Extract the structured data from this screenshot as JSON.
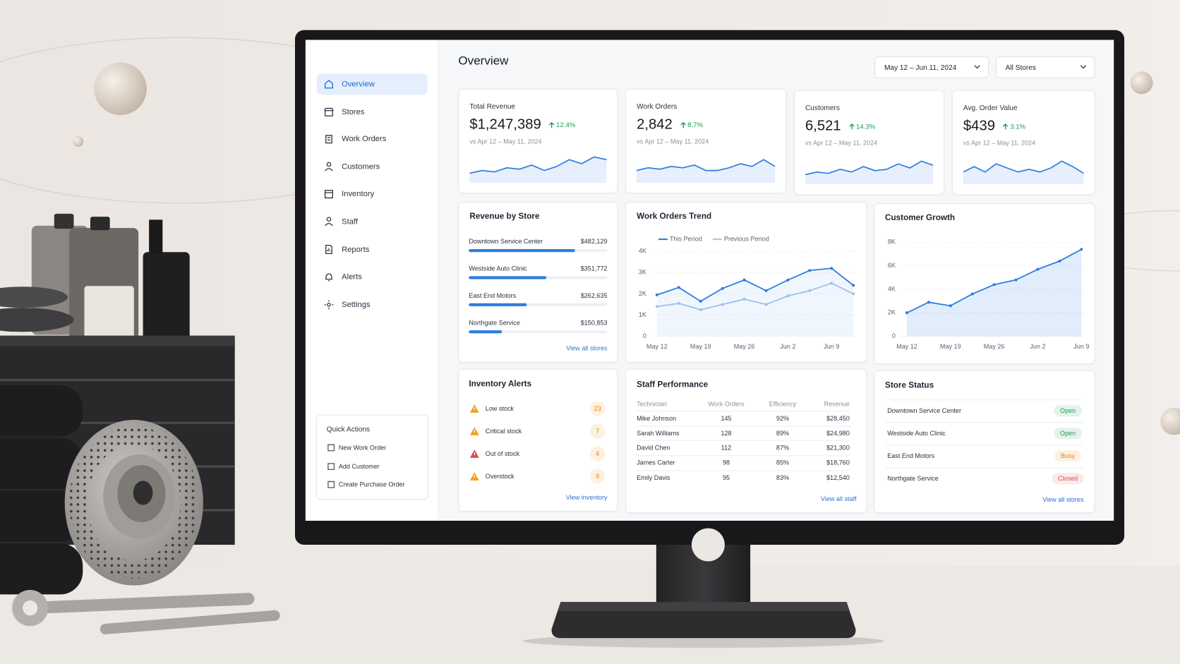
{
  "nav": {
    "items": [
      "Overview",
      "Stores",
      "Work Orders",
      "Customers",
      "Inventory",
      "Staff",
      "Reports",
      "Alerts",
      "Settings"
    ]
  },
  "quick_actions": {
    "title": "Quick Actions",
    "items": [
      "New Work Order",
      "Add Customer",
      "Create Purchase Order"
    ]
  },
  "header": {
    "title": "Overview",
    "date_range": "May 12 – Jun 11, 2024",
    "store_filter": "All Stores"
  },
  "kpis": [
    {
      "label": "Total Revenue",
      "value": "$1,247,389",
      "change": "12.4%",
      "comparison": "vs Apr 12 – May 11, 2024",
      "trend": {
        "values": [
          3,
          4,
          3.5,
          5,
          4.5,
          6,
          4,
          5.5,
          8,
          6.5,
          9,
          8
        ],
        "ylim": [
          0,
          10
        ]
      }
    },
    {
      "label": "Work Orders",
      "value": "2,842",
      "change": "8.7%",
      "comparison": "vs Apr 12 – May 11, 2024",
      "trend": {
        "values": [
          4,
          5,
          4.5,
          5.5,
          5,
          6,
          4,
          4,
          5,
          6.5,
          5.5,
          8,
          5.5
        ],
        "ylim": [
          0,
          10
        ]
      }
    },
    {
      "label": "Customers",
      "value": "6,521",
      "change": "14.3%",
      "comparison": "vs Apr 12 – May 11, 2024",
      "trend": {
        "values": [
          3,
          4,
          3.5,
          5,
          4,
          6,
          4.5,
          5,
          7,
          5.5,
          8,
          6.5
        ],
        "ylim": [
          0,
          10
        ]
      }
    },
    {
      "label": "Avg. Order Value",
      "value": "$439",
      "change": "3.1%",
      "comparison": "vs Apr 12 – May 11, 2024",
      "trend": {
        "values": [
          4,
          6,
          4,
          7,
          5.5,
          4,
          5,
          4,
          5.5,
          8,
          6,
          3.5
        ],
        "ylim": [
          0,
          10
        ]
      }
    }
  ],
  "chart_data": [
    {
      "type": "bar",
      "title": "Revenue by Store",
      "categories": [
        "Downtown Service Center",
        "Westside Auto Clinic",
        "East End Motors",
        "Northgate Service"
      ],
      "values": [
        482129,
        351772,
        262635,
        150853
      ],
      "value_labels": [
        "$482,129",
        "$351,772",
        "$262,635",
        "$150,853"
      ],
      "xlim": [
        0,
        630000
      ],
      "color": "#2f7de1",
      "link": "View all stores"
    },
    {
      "type": "line",
      "title": "Work Orders Trend",
      "categories": [
        "May 12",
        null,
        "May 19",
        null,
        "May 26",
        null,
        "Jun 2",
        null,
        "Jun 9",
        null
      ],
      "series": [
        {
          "name": "This Period",
          "color": "#2f7de1",
          "values": [
            1950,
            2300,
            1650,
            2250,
            2650,
            2150,
            2650,
            3100,
            3200,
            2400
          ]
        },
        {
          "name": "Previous Period",
          "color": "#a9c4ee",
          "values": [
            1400,
            1550,
            1250,
            1500,
            1750,
            1500,
            1900,
            2150,
            2500,
            2000
          ]
        }
      ],
      "ylim": [
        0,
        4000
      ],
      "yticks": [
        0,
        {
          "value": 1000,
          "label": "1K"
        },
        {
          "value": 2000,
          "label": "2K"
        },
        {
          "value": 3000,
          "label": "3K"
        },
        {
          "value": 4000,
          "label": "4K"
        }
      ],
      "grid": true
    },
    {
      "type": "area",
      "title": "Customer Growth",
      "categories": [
        "May 12",
        null,
        "May 19",
        null,
        "May 26",
        null,
        "Jun 2",
        null,
        "Jun 9"
      ],
      "values": [
        2000,
        2900,
        2600,
        3600,
        4400,
        4800,
        5700,
        6400,
        7400
      ],
      "color": "#2f7de1",
      "ylim": [
        0,
        8000
      ],
      "yticks": [
        0,
        {
          "value": 2000,
          "label": "2K"
        },
        {
          "value": 4000,
          "label": "4K"
        },
        {
          "value": 6000,
          "label": "6K"
        },
        {
          "value": 8000,
          "label": "8K"
        }
      ],
      "grid": true
    }
  ],
  "inventory_alerts": {
    "title": "Inventory Alerts",
    "badge_color": "#e8890c",
    "items": [
      {
        "label": "Low stock",
        "count": 23,
        "icon_color": "#f0a020"
      },
      {
        "label": "Critical stock",
        "count": 7,
        "icon_color": "#f0a020"
      },
      {
        "label": "Out of stock",
        "count": 4,
        "icon_color": "#e5484d"
      },
      {
        "label": "Overstock",
        "count": 9,
        "icon_color": "#f0a020"
      }
    ],
    "link": "View inventory"
  },
  "staff_performance": {
    "title": "Staff Performance",
    "columns": [
      "Technician",
      "Work Orders",
      "Efficiency",
      "Revenue"
    ],
    "rows": [
      [
        "Mike Johnson",
        "145",
        "92%",
        "$28,450"
      ],
      [
        "Sarah Williams",
        "128",
        "89%",
        "$24,980"
      ],
      [
        "David Chen",
        "112",
        "87%",
        "$21,300"
      ],
      [
        "James Carter",
        "98",
        "85%",
        "$18,760"
      ],
      [
        "Emily Davis",
        "95",
        "83%",
        "$12,540"
      ]
    ],
    "link": "View all staff"
  },
  "store_status": {
    "title": "Store Status",
    "stores": [
      {
        "name": "Downtown Service Center",
        "status": "Open",
        "status_color": "#1f9d55"
      },
      {
        "name": "Westside Auto Clinic",
        "status": "Open",
        "status_color": "#1f9d55"
      },
      {
        "name": "East End Motors",
        "status": "Busy",
        "status_color": "#e8890c"
      },
      {
        "name": "Northgate Service",
        "status": "Closed",
        "status_color": "#e5484d"
      }
    ],
    "link": "View all stores"
  }
}
